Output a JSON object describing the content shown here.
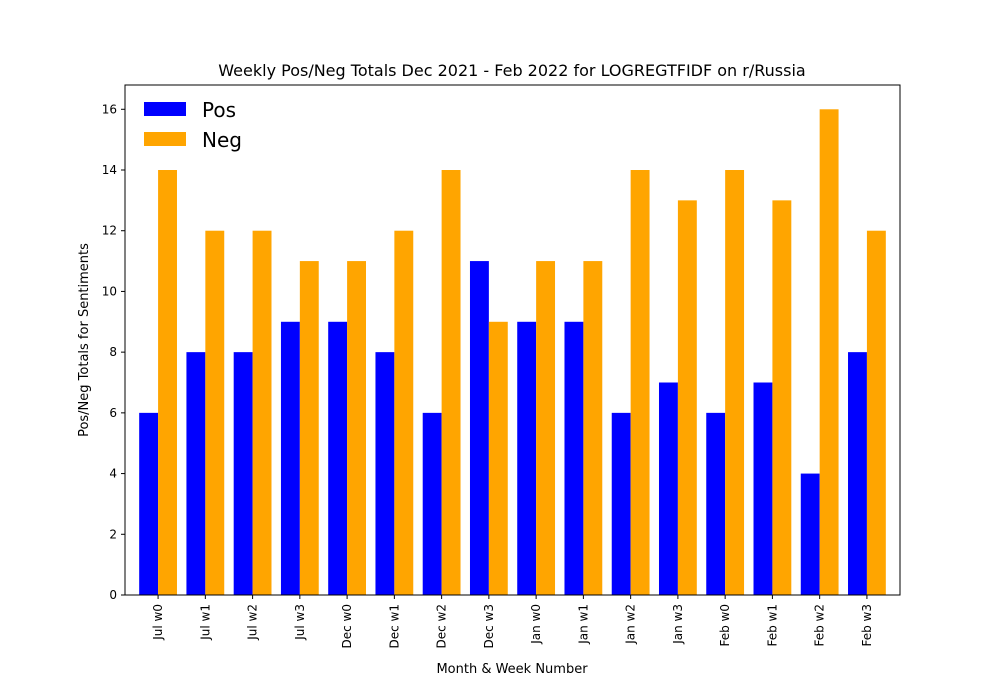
{
  "chart_data": {
    "type": "bar",
    "title": "Weekly Pos/Neg Totals Dec 2021 - Feb 2022 for LOGREGTFIDF on r/Russia",
    "xlabel": "Month & Week Number",
    "ylabel": "Pos/Neg Totals for Sentiments",
    "categories": [
      "Jul w0",
      "Jul w1",
      "Jul w2",
      "Jul w3",
      "Dec w0",
      "Dec w1",
      "Dec w2",
      "Dec w3",
      "Jan w0",
      "Jan w1",
      "Jan w2",
      "Jan w3",
      "Feb w0",
      "Feb w1",
      "Feb w2",
      "Feb w3"
    ],
    "series": [
      {
        "name": "Pos",
        "color": "#0000ff",
        "values": [
          6,
          8,
          8,
          9,
          9,
          8,
          6,
          11,
          9,
          9,
          6,
          7,
          6,
          7,
          4,
          8
        ]
      },
      {
        "name": "Neg",
        "color": "#ffa500",
        "values": [
          14,
          12,
          12,
          11,
          11,
          12,
          14,
          9,
          11,
          11,
          14,
          13,
          14,
          13,
          16,
          12
        ]
      }
    ],
    "ylim": [
      0,
      16.8
    ],
    "yticks": [
      0,
      2,
      4,
      6,
      8,
      10,
      12,
      14,
      16
    ],
    "legend_position": "top-left",
    "grid": false
  }
}
